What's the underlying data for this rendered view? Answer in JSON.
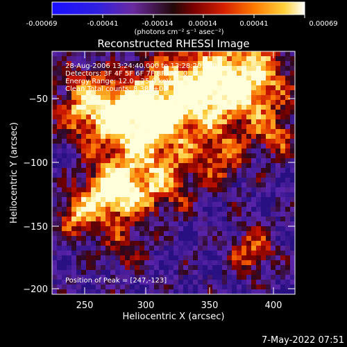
{
  "colorbar": {
    "tick_labels": [
      "-0.00069",
      "-0.00041",
      "-0.00014",
      "0.00014",
      "0.00041",
      "0.00069"
    ],
    "units_label": "(photons cm⁻² s⁻¹ asec⁻²)"
  },
  "plot": {
    "title": "Reconstructed RHESSI Image",
    "annotations": [
      "28-Aug-2006 13:24:40.000 to 13:28:20.000",
      "Detectors: 3F 4F 5F 6F 7F 8F, Att_0",
      "Energy Range: 12.0 - 25.0 keV",
      "Clean    Total counts: 8.38E+03"
    ],
    "peak_label": "Position of Peak = [247,-123]",
    "x_axis": {
      "label": "Heliocentric X (arcsec)",
      "ticks": [
        "250",
        "300",
        "350",
        "400"
      ],
      "range": [
        225,
        415
      ]
    },
    "y_axis": {
      "label": "Heliocentric Y (arcsec)",
      "ticks": [
        "−50",
        "−100",
        "−150",
        "−200"
      ],
      "range": [
        -205,
        -15
      ]
    }
  },
  "footer": {
    "timestamp": "7-May-2022 07:51"
  }
}
